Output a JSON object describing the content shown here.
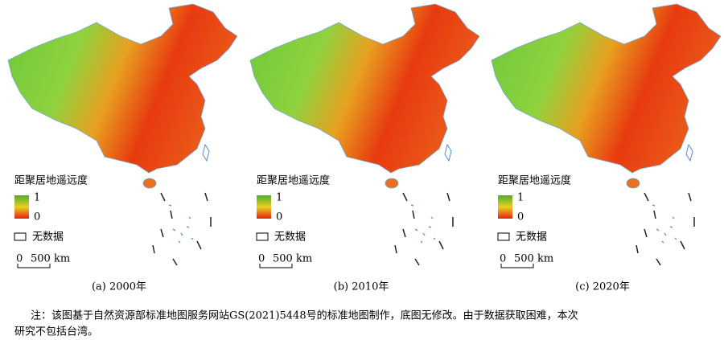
{
  "panels": [
    {
      "caption": "(a) 2000年",
      "legend": {
        "title": "距聚居地遥远度",
        "max": 1,
        "min": 0,
        "no_data": "无数据"
      },
      "scale": {
        "zero": 0,
        "distance": "500 km"
      }
    },
    {
      "caption": "(b) 2010年",
      "legend": {
        "title": "距聚居地遥远度",
        "max": 1,
        "min": 0,
        "no_data": "无数据"
      },
      "scale": {
        "zero": 0,
        "distance": "500 km"
      }
    },
    {
      "caption": "(c) 2020年",
      "legend": {
        "title": "距聚居地遥远度",
        "max": 1,
        "min": 0,
        "no_data": "无数据"
      },
      "scale": {
        "zero": 0,
        "distance": "500 km"
      }
    }
  ],
  "note": [
    "注：该图基于自然资源部标准地图服务网站GS(2021)5448号的标准地图制作，底图无修改。由于数据获取困难，本次",
    "研究不包括台湾。"
  ]
}
